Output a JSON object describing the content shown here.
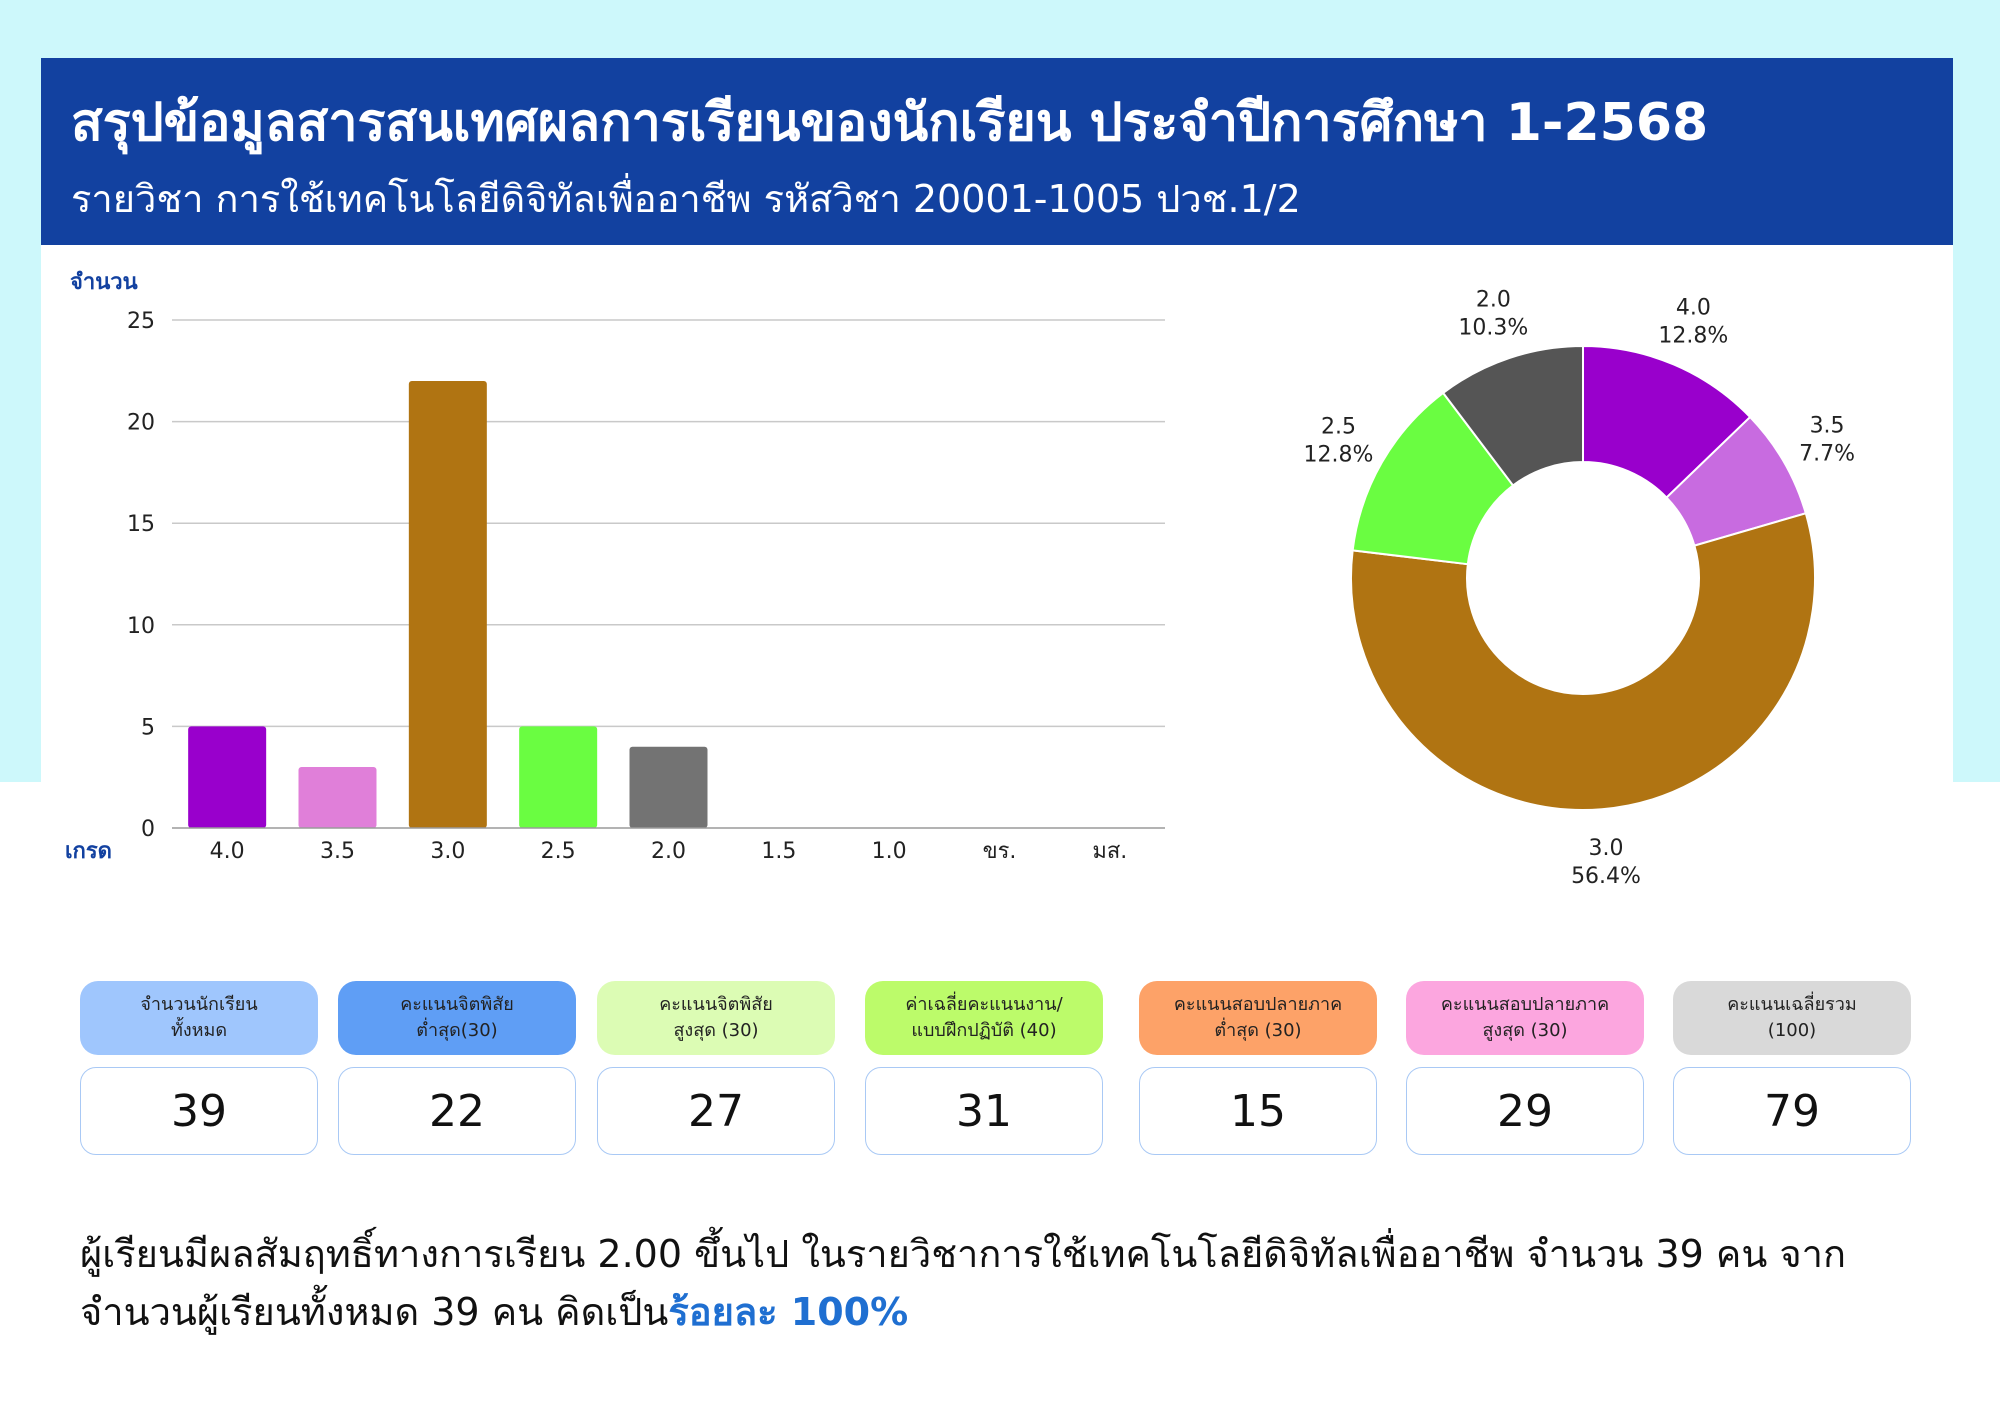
{
  "header": {
    "title": "สรุปข้อมูลสารสนเทศผลการเรียนของนักเรียน ประจำปีการศึกษา 1-2568",
    "subtitle": "รายวิชา การใช้เทคโนโลยีดิจิทัลเพื่ออาชีพ รหัสวิชา 20001-1005 ปวช.1/2"
  },
  "chart_data": [
    {
      "type": "bar",
      "ylabel": "จำนวน",
      "xlabel": "เกรด",
      "categories": [
        "4.0",
        "3.5",
        "3.0",
        "2.5",
        "2.0",
        "1.5",
        "1.0",
        "ขร.",
        "มส."
      ],
      "values": [
        5,
        3,
        22,
        5,
        4,
        0,
        0,
        0,
        0
      ],
      "colors": [
        "#9900cc",
        "#e07fd9",
        "#b07412",
        "#6afd41",
        "#737373",
        "#737373",
        "#737373",
        "#737373",
        "#737373"
      ],
      "ylim": [
        0,
        25
      ],
      "yticks": [
        0,
        5,
        10,
        15,
        20,
        25
      ],
      "grid": true
    },
    {
      "type": "pie",
      "donut": true,
      "slices": [
        {
          "label": "4.0",
          "percent_label": "12.8%",
          "value": 12.8,
          "color": "#9900cc"
        },
        {
          "label": "3.5",
          "percent_label": "7.7%",
          "value": 7.7,
          "color": "#c86be0"
        },
        {
          "label": "3.0",
          "percent_label": "56.4%",
          "value": 56.4,
          "color": "#b07412"
        },
        {
          "label": "2.5",
          "percent_label": "12.8%",
          "value": 12.8,
          "color": "#6afd41"
        },
        {
          "label": "2.0",
          "percent_label": "10.3%",
          "value": 10.3,
          "color": "#555555"
        }
      ]
    }
  ],
  "stats": [
    {
      "label": "จำนวนนักเรียน\nทั้งหมด",
      "value": "39",
      "color": "#9fc6fd"
    },
    {
      "label": "คะแนนจิตพิสัย\nต่ำสุด(30)",
      "value": "22",
      "color": "#5f9ef5"
    },
    {
      "label": "คะแนนจิตพิสัย\nสูงสุด (30)",
      "value": "27",
      "color": "#dcfcb4"
    },
    {
      "label": "ค่าเฉลี่ยคะแนนงาน/\nแบบฝึกปฏิบัติ (40)",
      "value": "31",
      "color": "#bcfb6a"
    },
    {
      "label": "คะแนนสอบปลายภาค\nต่ำสุด (30)",
      "value": "15",
      "color": "#fda268"
    },
    {
      "label": "คะแนนสอบปลายภาค\nสูงสุด (30)",
      "value": "29",
      "color": "#fca6df"
    },
    {
      "label": "คะแนนเฉลี่ยรวม\n(100)",
      "value": "79",
      "color": "#d9d9d9"
    }
  ],
  "summary": {
    "text": "ผู้เรียนมีผลสัมฤทธิ์ทางการเรียน 2.00 ขึ้นไป ในรายวิชาการใช้เทคโนโลยีดิจิทัลเพื่ออาชีพ จำนวน 39 คน จากจำนวนผู้เรียนทั้งหมด 39 คน คิดเป็น",
    "highlight": "ร้อยละ 100%"
  }
}
